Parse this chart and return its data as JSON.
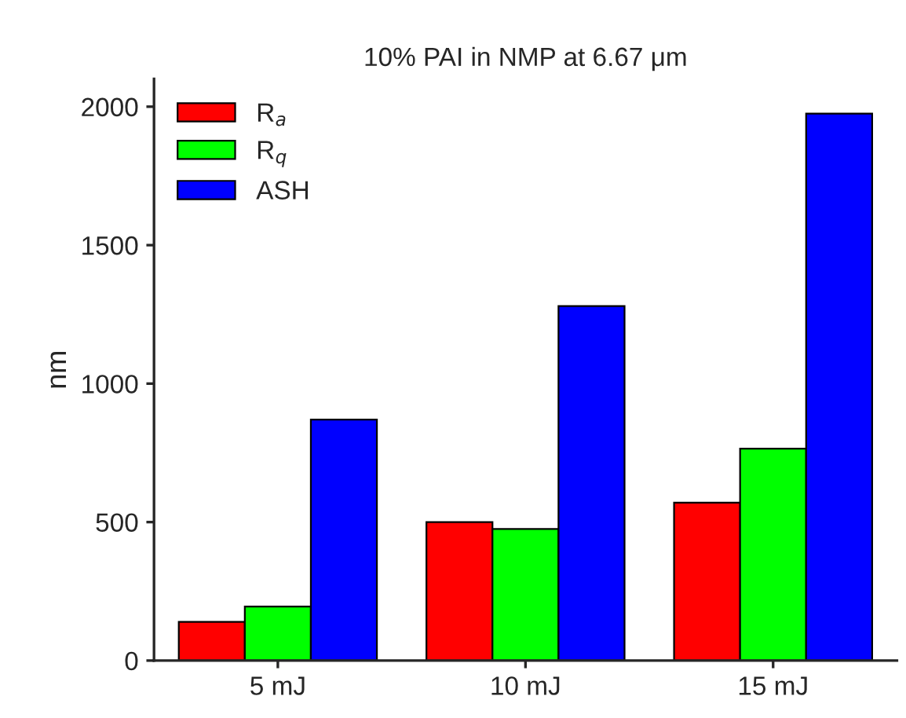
{
  "chart_data": {
    "type": "bar",
    "title": "10% PAI in NMP at 6.67 μm",
    "ylabel": "nm",
    "categories": [
      "5 mJ",
      "10 mJ",
      "15 mJ"
    ],
    "series": [
      {
        "name": "R$_{a}$",
        "color": "#ff0000",
        "values": [
          140,
          500,
          570
        ]
      },
      {
        "name": "R$_{q}$",
        "color": "#00ff00",
        "values": [
          195,
          475,
          765
        ]
      },
      {
        "name": "ASH",
        "color": "#0000ff",
        "values": [
          870,
          1280,
          1975
        ]
      }
    ],
    "ylim": [
      0,
      2100
    ],
    "yticks": [
      0,
      500,
      1000,
      1500,
      2000
    ],
    "grid": false,
    "legend": "top left"
  }
}
